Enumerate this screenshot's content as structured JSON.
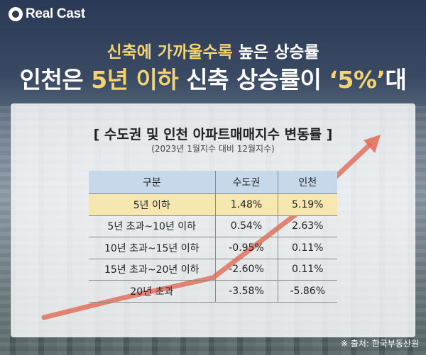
{
  "brand": {
    "logo_text": "Real Cast"
  },
  "headline": {
    "line1_highlight": "신축에 가까울수록",
    "line1_rest": " 높은 상승률",
    "line2_pre": "인천은 ",
    "line2_highlight1": "5년 이하",
    "line2_mid": " 신축 상승률이 ",
    "line2_highlight2": "‘5%’",
    "line2_post": "대"
  },
  "table_card": {
    "title": "[ 수도권 및 인천 아파트매매지수 변동률 ]",
    "subtitle": "(2023년 1월지수 대비 12월지수)",
    "columns": [
      "구분",
      "수도권",
      "인천"
    ],
    "rows": [
      {
        "category": "5년 이하",
        "capital": "1.48%",
        "incheon": "5.19%",
        "highlighted": true
      },
      {
        "category": "5년 초과~10년 이하",
        "capital": "0.54%",
        "incheon": "2.63%",
        "highlighted": false
      },
      {
        "category": "10년 초과~15년 이하",
        "capital": "-0.95%",
        "incheon": "0.11%",
        "highlighted": false
      },
      {
        "category": "15년 초과~20년 이하",
        "capital": "-2.60%",
        "incheon": "0.11%",
        "highlighted": false
      },
      {
        "category": "20년 초과",
        "capital": "-3.58%",
        "incheon": "-5.86%",
        "highlighted": false
      }
    ]
  },
  "source": "※ 출처: 한국부동산원",
  "colors": {
    "header_bg": "#c6d8ea",
    "highlight_row_bg": "#f6e7b0",
    "headline_highlight": "#f3d470",
    "arrow": "#e06a55"
  }
}
